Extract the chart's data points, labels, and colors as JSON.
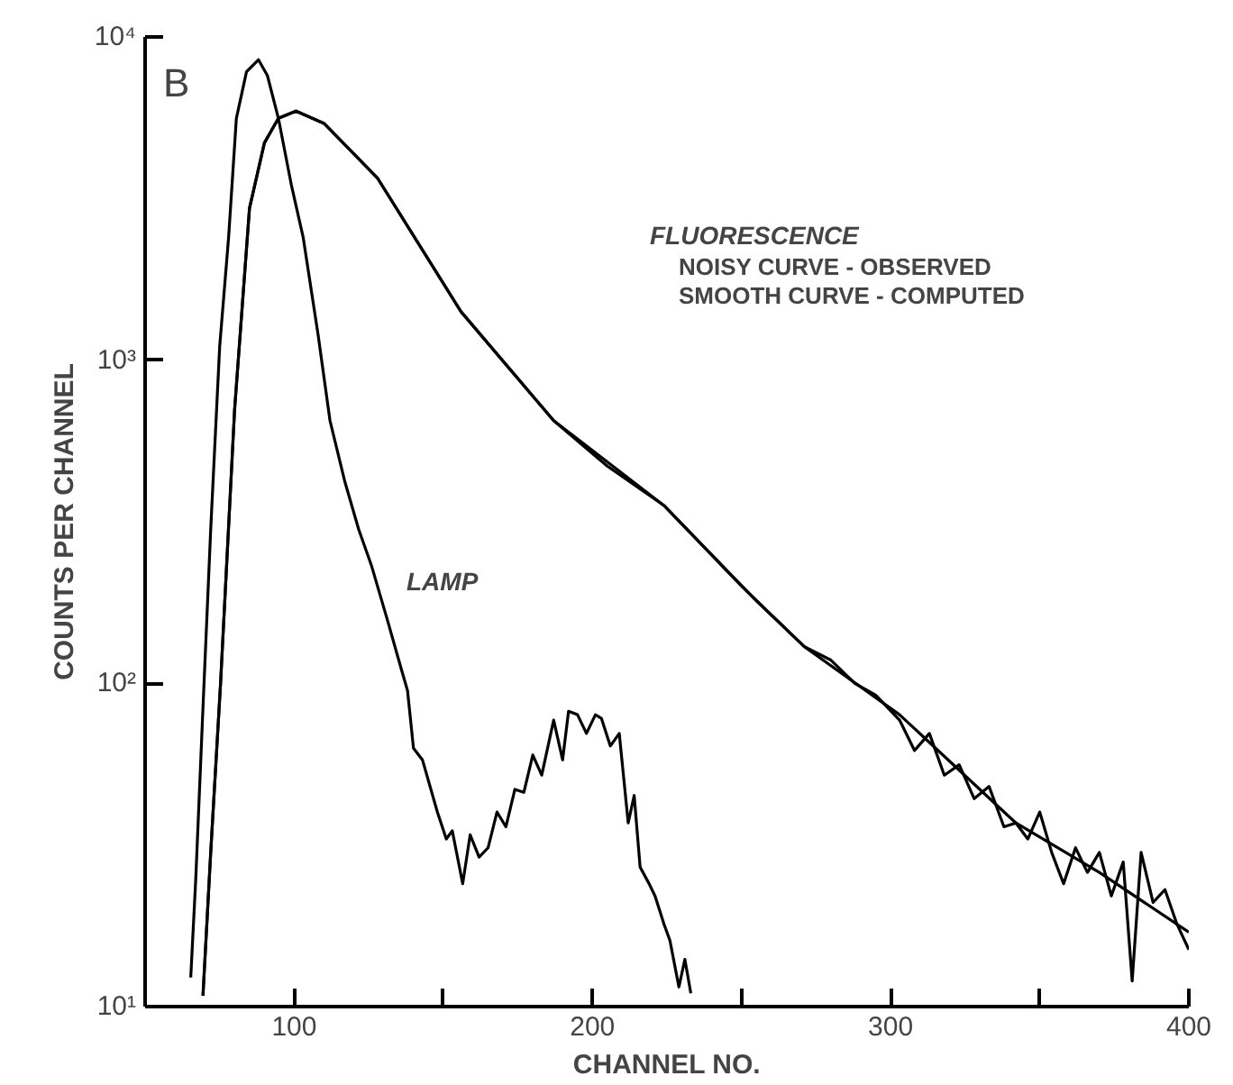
{
  "chart_data": {
    "type": "line",
    "xlabel": "CHANNEL NO.",
    "ylabel": "COUNTS PER CHANNEL",
    "log": "y",
    "grid": false,
    "marker": "none",
    "line_style": "solid",
    "xlim": [
      50,
      400
    ],
    "ylim": [
      10,
      10000
    ],
    "xticks": [
      100,
      {
        "value": 150,
        "label": null
      },
      200,
      {
        "value": 250,
        "label": null
      },
      300,
      {
        "value": 350,
        "label": null
      },
      400
    ],
    "yticks": [
      {
        "value": 10,
        "label": "10¹"
      },
      {
        "value": 100,
        "label": "10²"
      },
      {
        "value": 1000,
        "label": "10³"
      },
      {
        "value": 10000,
        "label": "10⁴"
      }
    ],
    "annotations": [
      "B",
      "FLUORESCENCE",
      "NOISY CURVE - OBSERVED",
      "SMOOTH CURVE - COMPUTED",
      "LAMP"
    ],
    "series": [
      {
        "color": "#000000",
        "x": [
          65.3,
          67,
          69.4,
          72,
          75,
          78,
          80.6,
          84,
          88,
          91,
          94.7,
          99,
          103,
          108,
          112,
          117,
          121.6,
          126,
          131,
          136,
          138,
          140,
          143,
          148,
          151,
          153,
          156.5,
          159,
          162,
          165,
          168,
          171,
          174,
          177,
          180,
          183,
          187,
          190,
          192,
          195,
          198,
          201,
          203,
          206,
          209,
          212,
          214,
          216,
          219,
          221,
          224,
          226,
          229,
          231,
          233
        ],
        "values": [
          12.3,
          25,
          84,
          300,
          1100,
          2400,
          5600,
          7800,
          8500,
          7600,
          5600,
          3500,
          2400,
          1200,
          650,
          420,
          300,
          230,
          160,
          110,
          95,
          63,
          58,
          40,
          33,
          35,
          24,
          34,
          29,
          31,
          40,
          36,
          47,
          46,
          60,
          52,
          77,
          58,
          82,
          80,
          70,
          80,
          78,
          64,
          70,
          37,
          45,
          27,
          24,
          22,
          18,
          16,
          11.5,
          14,
          11
        ]
      },
      {
        "color": "#000000",
        "x": [
          69.4,
          72,
          75.3,
          80,
          85,
          90,
          94.7,
          100.6,
          110,
          128,
          156,
          187,
          205,
          224,
          240,
          255,
          271,
          280,
          288,
          295,
          303,
          308,
          313,
          318,
          323,
          328,
          333,
          338,
          342,
          346,
          350,
          354,
          358,
          362,
          366,
          370,
          374,
          378,
          381,
          384,
          388,
          392,
          396,
          400
        ],
        "values": [
          10.8,
          30,
          100,
          700,
          2950,
          4700,
          5600,
          5900,
          5400,
          3650,
          1410,
          650,
          470,
          355,
          250,
          180,
          130,
          118,
          100,
          92,
          77,
          62,
          70,
          52,
          56,
          44,
          48,
          36,
          37,
          33,
          40,
          30,
          24,
          31,
          26,
          30,
          22,
          28,
          12,
          30,
          21,
          23,
          18,
          15
        ]
      },
      {
        "color": "#000000",
        "x": [
          69.4,
          72,
          75.3,
          80,
          85,
          90,
          94.7,
          100.6,
          110,
          128,
          156,
          187,
          224,
          250,
          271,
          303,
          342,
          370,
          400
        ],
        "values": [
          10.8,
          30,
          100,
          700,
          2950,
          4700,
          5600,
          5900,
          5400,
          3650,
          1410,
          650,
          355,
          200,
          130,
          80,
          37,
          26,
          17
        ]
      }
    ]
  }
}
